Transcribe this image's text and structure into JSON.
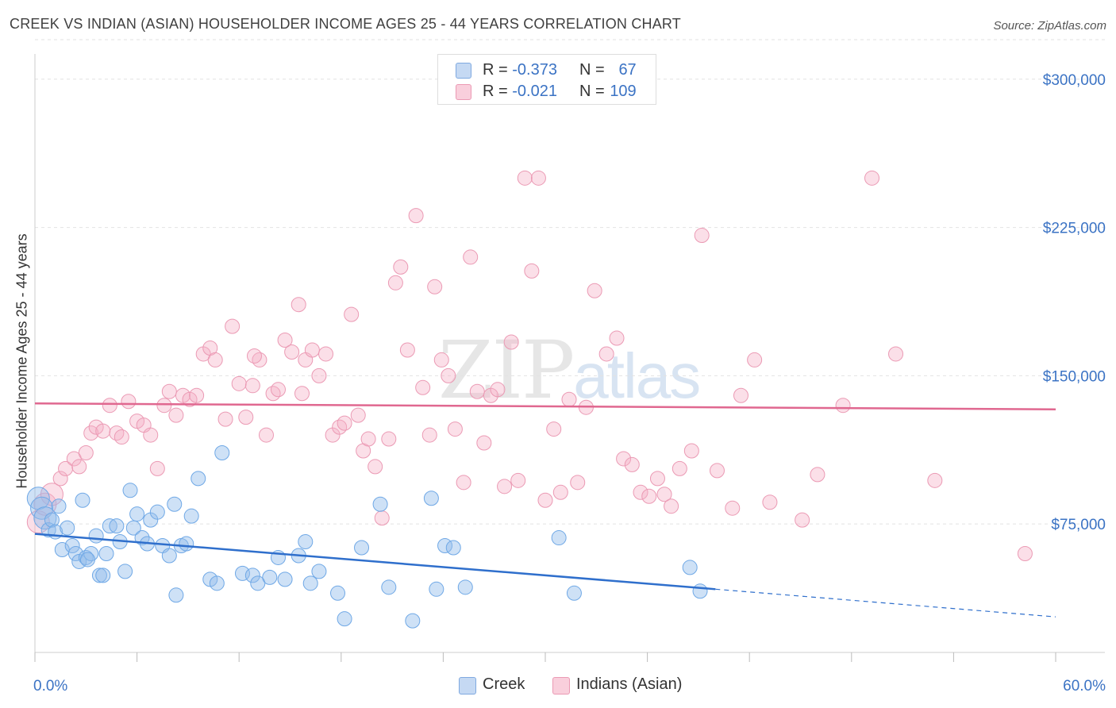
{
  "title": "CREEK VS INDIAN (ASIAN) HOUSEHOLDER INCOME AGES 25 - 44 YEARS CORRELATION CHART",
  "source": "Source: ZipAtlas.com",
  "watermark": {
    "zip": "ZIP",
    "atlas": "atlas"
  },
  "colors": {
    "creek": "#6fa8e6",
    "indian": "#f0a0b8",
    "creek_line": "#2f6fcc",
    "indian_line": "#e06890",
    "axis_label": "#3b73c4"
  },
  "legend_top": {
    "rows": [
      {
        "r_label": "R =",
        "r_value": "-0.373",
        "n_label": "N =",
        "n_value": "67"
      },
      {
        "r_label": "R =",
        "r_value": "-0.021",
        "n_label": "N =",
        "n_value": "109"
      }
    ]
  },
  "legend_bottom": [
    "Creek",
    "Indians (Asian)"
  ],
  "chart_data": {
    "type": "scatter",
    "title": "CREEK VS INDIAN (ASIAN) HOUSEHOLDER INCOME AGES 25 - 44 YEARS CORRELATION CHART",
    "xlabel": "",
    "ylabel": "Householder Income Ages 25 - 44 years",
    "xlim": [
      0,
      60
    ],
    "ylim": [
      10000,
      320000
    ],
    "x_tick_labels": [
      "0.0%",
      "60.0%"
    ],
    "y_ticks": [
      75000,
      150000,
      225000,
      300000
    ],
    "y_tick_labels": [
      "$75,000",
      "$150,000",
      "$225,000",
      "$300,000"
    ],
    "grid": "horizontal dashed",
    "legend_position": "top-center",
    "series": [
      {
        "name": "Creek",
        "R": -0.373,
        "N": 67,
        "trend": {
          "x0": 0,
          "y0": 70000,
          "x1": 40,
          "y1": 42000,
          "dash_to_x": 60,
          "dash_to_y": 28000
        },
        "points": [
          [
            0.2,
            88000
          ],
          [
            0.4,
            83000
          ],
          [
            0.6,
            78000
          ],
          [
            0.8,
            72000
          ],
          [
            1.0,
            77000
          ],
          [
            1.2,
            71000
          ],
          [
            1.4,
            84000
          ],
          [
            1.6,
            62000
          ],
          [
            1.9,
            73000
          ],
          [
            2.2,
            64000
          ],
          [
            2.4,
            60000
          ],
          [
            2.6,
            56000
          ],
          [
            2.8,
            87000
          ],
          [
            3.0,
            58000
          ],
          [
            3.3,
            60000
          ],
          [
            3.6,
            69000
          ],
          [
            3.8,
            49000
          ],
          [
            4.0,
            49000
          ],
          [
            4.2,
            60000
          ],
          [
            4.4,
            74000
          ],
          [
            4.8,
            74000
          ],
          [
            5.0,
            66000
          ],
          [
            5.3,
            51000
          ],
          [
            5.6,
            92000
          ],
          [
            5.8,
            73000
          ],
          [
            6.0,
            80000
          ],
          [
            6.3,
            68000
          ],
          [
            6.8,
            77000
          ],
          [
            7.2,
            81000
          ],
          [
            7.5,
            64000
          ],
          [
            7.9,
            59000
          ],
          [
            8.2,
            85000
          ],
          [
            8.6,
            64000
          ],
          [
            8.9,
            65000
          ],
          [
            9.2,
            79000
          ],
          [
            9.6,
            98000
          ],
          [
            10.3,
            47000
          ],
          [
            10.7,
            45000
          ],
          [
            11.0,
            111000
          ],
          [
            12.2,
            50000
          ],
          [
            12.8,
            49000
          ],
          [
            13.1,
            45000
          ],
          [
            13.8,
            48000
          ],
          [
            14.3,
            58000
          ],
          [
            14.7,
            47000
          ],
          [
            15.5,
            59000
          ],
          [
            15.9,
            66000
          ],
          [
            16.2,
            45000
          ],
          [
            16.7,
            51000
          ],
          [
            17.8,
            40000
          ],
          [
            18.2,
            27000
          ],
          [
            19.2,
            63000
          ],
          [
            20.3,
            85000
          ],
          [
            20.8,
            43000
          ],
          [
            22.2,
            26000
          ],
          [
            23.3,
            88000
          ],
          [
            23.6,
            42000
          ],
          [
            24.1,
            64000
          ],
          [
            24.6,
            63000
          ],
          [
            25.3,
            43000
          ],
          [
            30.8,
            68000
          ],
          [
            31.7,
            40000
          ],
          [
            38.5,
            53000
          ],
          [
            39.1,
            41000
          ],
          [
            3.1,
            57000
          ],
          [
            6.6,
            65000
          ],
          [
            8.3,
            39000
          ]
        ]
      },
      {
        "name": "Indians (Asian)",
        "R": -0.021,
        "N": 109,
        "trend": {
          "x0": 0,
          "y0": 136000,
          "x1": 60,
          "y1": 133000
        },
        "points": [
          [
            0.2,
            76000
          ],
          [
            0.6,
            85000
          ],
          [
            1.0,
            90000
          ],
          [
            1.5,
            98000
          ],
          [
            1.8,
            103000
          ],
          [
            2.3,
            108000
          ],
          [
            2.6,
            104000
          ],
          [
            3.0,
            111000
          ],
          [
            3.3,
            121000
          ],
          [
            3.6,
            124000
          ],
          [
            4.0,
            122000
          ],
          [
            4.4,
            135000
          ],
          [
            4.8,
            121000
          ],
          [
            5.1,
            119000
          ],
          [
            5.5,
            137000
          ],
          [
            6.0,
            127000
          ],
          [
            6.4,
            125000
          ],
          [
            6.8,
            120000
          ],
          [
            7.2,
            103000
          ],
          [
            7.6,
            135000
          ],
          [
            7.9,
            142000
          ],
          [
            8.3,
            130000
          ],
          [
            8.7,
            140000
          ],
          [
            9.1,
            138000
          ],
          [
            9.5,
            140000
          ],
          [
            9.9,
            161000
          ],
          [
            10.3,
            164000
          ],
          [
            10.6,
            158000
          ],
          [
            11.2,
            128000
          ],
          [
            11.6,
            175000
          ],
          [
            12.0,
            146000
          ],
          [
            12.4,
            129000
          ],
          [
            12.8,
            145000
          ],
          [
            13.2,
            158000
          ],
          [
            13.6,
            120000
          ],
          [
            14.0,
            141000
          ],
          [
            14.3,
            143000
          ],
          [
            14.7,
            168000
          ],
          [
            15.1,
            162000
          ],
          [
            15.5,
            186000
          ],
          [
            15.9,
            158000
          ],
          [
            16.3,
            163000
          ],
          [
            16.7,
            150000
          ],
          [
            17.1,
            161000
          ],
          [
            17.5,
            120000
          ],
          [
            17.9,
            124000
          ],
          [
            18.2,
            126000
          ],
          [
            18.6,
            181000
          ],
          [
            19.0,
            130000
          ],
          [
            19.3,
            112000
          ],
          [
            19.6,
            118000
          ],
          [
            20.0,
            104000
          ],
          [
            20.4,
            78000
          ],
          [
            20.8,
            118000
          ],
          [
            21.2,
            197000
          ],
          [
            21.5,
            205000
          ],
          [
            21.9,
            163000
          ],
          [
            22.4,
            231000
          ],
          [
            22.8,
            144000
          ],
          [
            23.2,
            120000
          ],
          [
            23.5,
            195000
          ],
          [
            23.9,
            158000
          ],
          [
            24.3,
            150000
          ],
          [
            24.7,
            123000
          ],
          [
            25.2,
            96000
          ],
          [
            25.6,
            210000
          ],
          [
            26.0,
            142000
          ],
          [
            26.4,
            116000
          ],
          [
            26.8,
            140000
          ],
          [
            27.2,
            143000
          ],
          [
            27.6,
            94000
          ],
          [
            28.0,
            167000
          ],
          [
            28.4,
            97000
          ],
          [
            28.8,
            250000
          ],
          [
            29.2,
            203000
          ],
          [
            29.6,
            250000
          ],
          [
            30.0,
            87000
          ],
          [
            30.5,
            123000
          ],
          [
            30.9,
            91000
          ],
          [
            31.4,
            138000
          ],
          [
            31.9,
            96000
          ],
          [
            32.4,
            134000
          ],
          [
            32.9,
            193000
          ],
          [
            33.6,
            161000
          ],
          [
            34.2,
            169000
          ],
          [
            34.6,
            108000
          ],
          [
            35.1,
            105000
          ],
          [
            35.6,
            91000
          ],
          [
            36.1,
            89000
          ],
          [
            36.6,
            98000
          ],
          [
            37.0,
            90000
          ],
          [
            37.4,
            84000
          ],
          [
            37.9,
            103000
          ],
          [
            38.6,
            112000
          ],
          [
            39.2,
            221000
          ],
          [
            40.1,
            102000
          ],
          [
            41.0,
            83000
          ],
          [
            41.5,
            140000
          ],
          [
            42.3,
            158000
          ],
          [
            43.2,
            86000
          ],
          [
            45.1,
            77000
          ],
          [
            46.0,
            100000
          ],
          [
            47.5,
            135000
          ],
          [
            49.2,
            250000
          ],
          [
            50.6,
            161000
          ],
          [
            52.9,
            97000
          ],
          [
            58.2,
            60000
          ],
          [
            12.9,
            160000
          ],
          [
            15.7,
            141000
          ]
        ]
      }
    ]
  }
}
